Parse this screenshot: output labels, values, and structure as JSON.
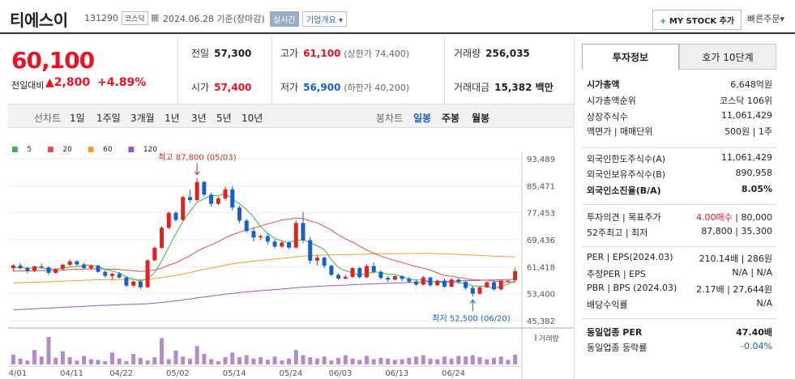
{
  "header": {
    "name": "티에스이",
    "code": "131290",
    "market": "코스닥",
    "date": "2024.06.28 기준(장마감)",
    "realtime": "실시간",
    "company_info": "기업개요",
    "mystock": "MY STOCK 추가",
    "quick_order": "빠른주문"
  },
  "price": {
    "current": "60,100",
    "change_label": "전일대비",
    "change": "2,800",
    "pct": "+4.89%"
  },
  "quote": {
    "prev_label": "전일",
    "prev": "57,300",
    "open_label": "시가",
    "open": "57,400",
    "high_label": "고가",
    "high": "61,100",
    "upper_limit": "(상한가 74,400)",
    "low_label": "저가",
    "low": "56,900",
    "lower_limit": "(하한가 40,200)",
    "volume_label": "거래량",
    "volume": "256,035",
    "amount_label": "거래대금",
    "amount": "15,382 백만"
  },
  "tabs": {
    "line": "선차트",
    "periods": [
      "1일",
      "1주일",
      "3개월",
      "1년",
      "3년",
      "5년",
      "10년"
    ],
    "candle": "봉차트",
    "daily": "일봉",
    "weekly": "주봉",
    "monthly": "월봉"
  },
  "legend": [
    "5",
    "20",
    "60",
    "120"
  ],
  "colors": {
    "up": "#e12222",
    "down": "#1a5fc8",
    "ma5": "#3ab54a",
    "ma20": "#e05050",
    "ma60": "#f0a030",
    "ma120": "#9b59b6"
  },
  "chart_data": {
    "type": "candlestick",
    "title": "",
    "y_ticks": [
      "93,489",
      "85,471",
      "77,453",
      "69,436",
      "61,418",
      "53,400",
      "45,382"
    ],
    "ylim": [
      45382,
      93489
    ],
    "x_ticks": [
      "04/01",
      "04/11",
      "04/22",
      "05/02",
      "05/14",
      "05/24",
      "06/03",
      "06/13",
      "06/24"
    ],
    "high_annotation": "최고 87,800 (05/03)",
    "low_annotation": "최저 52,500 (06/20)",
    "volume_label": "거래량",
    "candles": [
      [
        61000,
        62200,
        60000,
        61800
      ],
      [
        61800,
        62500,
        60500,
        61000
      ],
      [
        61000,
        61500,
        59500,
        60200
      ],
      [
        60200,
        61800,
        59800,
        61500
      ],
      [
        61500,
        62400,
        60800,
        61200
      ],
      [
        61200,
        61600,
        59000,
        59600
      ],
      [
        59600,
        61000,
        59300,
        60700
      ],
      [
        60700,
        62300,
        60400,
        62000
      ],
      [
        62000,
        63600,
        61500,
        63000
      ],
      [
        63000,
        63400,
        61600,
        62100
      ],
      [
        62100,
        62600,
        60600,
        61000
      ],
      [
        61000,
        62000,
        60300,
        61700
      ],
      [
        61700,
        62100,
        59600,
        59900
      ],
      [
        59900,
        60500,
        58200,
        58700
      ],
      [
        58700,
        59600,
        57600,
        59300
      ],
      [
        59300,
        59800,
        57900,
        58200
      ],
      [
        58200,
        58600,
        55400,
        55800
      ],
      [
        55800,
        57300,
        55400,
        57000
      ],
      [
        57000,
        57600,
        54800,
        55300
      ],
      [
        55300,
        63600,
        55100,
        63300
      ],
      [
        63300,
        67500,
        63000,
        67000
      ],
      [
        67000,
        73500,
        66800,
        73000
      ],
      [
        73000,
        77800,
        72500,
        77400
      ],
      [
        77400,
        78000,
        74800,
        75300
      ],
      [
        75300,
        82600,
        75000,
        82100
      ],
      [
        82100,
        84300,
        80400,
        81200
      ],
      [
        81200,
        87800,
        80800,
        86600
      ],
      [
        86600,
        86900,
        82300,
        82800
      ],
      [
        82800,
        83400,
        79300,
        80100
      ],
      [
        80100,
        82300,
        79800,
        81700
      ],
      [
        81700,
        85200,
        81100,
        84400
      ],
      [
        84400,
        85400,
        78200,
        79000
      ],
      [
        79000,
        79500,
        74300,
        75100
      ],
      [
        75100,
        75600,
        71500,
        72000
      ],
      [
        72000,
        73200,
        68900,
        70100
      ],
      [
        70100,
        71000,
        69300,
        70500
      ],
      [
        70500,
        71300,
        68000,
        68900
      ],
      [
        68900,
        69500,
        66800,
        67400
      ],
      [
        67400,
        69100,
        66900,
        68600
      ],
      [
        68600,
        69000,
        66600,
        67100
      ],
      [
        67100,
        75300,
        66700,
        74400
      ],
      [
        74400,
        77700,
        68500,
        69300
      ],
      [
        69300,
        70200,
        62300,
        63200
      ],
      [
        63200,
        64800,
        61800,
        64100
      ],
      [
        64100,
        64500,
        60900,
        61700
      ],
      [
        61700,
        62000,
        58600,
        59000
      ],
      [
        59000,
        59500,
        57500,
        57900
      ],
      [
        57900,
        59000,
        57600,
        58400
      ],
      [
        58400,
        61300,
        58100,
        61000
      ],
      [
        61000,
        61400,
        57900,
        58300
      ],
      [
        58300,
        62100,
        58000,
        61600
      ],
      [
        61600,
        62700,
        59400,
        59900
      ],
      [
        59900,
        60400,
        57600,
        58100
      ],
      [
        58100,
        58600,
        56900,
        57600
      ],
      [
        57600,
        58900,
        57300,
        58600
      ],
      [
        58600,
        59000,
        57100,
        57800
      ],
      [
        57800,
        58400,
        56500,
        57000
      ],
      [
        57000,
        57700,
        55700,
        56100
      ],
      [
        56100,
        58700,
        55800,
        58200
      ],
      [
        58200,
        58500,
        55400,
        55900
      ],
      [
        55900,
        57600,
        55600,
        57300
      ],
      [
        57300,
        57900,
        55100,
        55500
      ],
      [
        55500,
        58100,
        55200,
        57600
      ],
      [
        57600,
        58000,
        56400,
        56900
      ],
      [
        56900,
        57300,
        54600,
        55100
      ],
      [
        55100,
        55700,
        52500,
        53400
      ],
      [
        53400,
        55700,
        53100,
        55300
      ],
      [
        55300,
        57100,
        55100,
        56800
      ],
      [
        56800,
        57300,
        54300,
        54700
      ],
      [
        54700,
        57400,
        54400,
        57300
      ],
      [
        57300,
        57400,
        56900,
        57300
      ],
      [
        57400,
        61100,
        56900,
        60100
      ]
    ],
    "volumes": [
      15,
      9,
      6,
      22,
      12,
      42,
      10,
      20,
      11,
      6,
      13,
      8,
      7,
      5,
      18,
      9,
      5,
      16,
      10,
      6,
      11,
      40,
      8,
      21,
      12,
      9,
      28,
      16,
      8,
      5,
      11,
      18,
      11,
      14,
      9,
      11,
      7,
      12,
      6,
      9,
      22,
      14,
      11,
      9,
      12,
      6,
      10,
      14,
      9,
      7,
      13,
      8,
      10,
      9,
      7,
      8,
      10,
      12,
      14,
      9,
      8,
      12,
      9,
      13,
      12,
      14,
      11,
      8,
      10,
      12,
      7,
      15
    ]
  },
  "side": {
    "tab_active": "투자정보",
    "tab_other": "호가 10단계",
    "rows": [
      {
        "k": "시가총액",
        "v": "6,648억원"
      },
      {
        "k": "시가총액순위",
        "v": "코스닥 106위"
      },
      {
        "k": "상장주식수",
        "v": "11,061,429"
      },
      {
        "k": "액면가 | 매매단위",
        "v": "500원 | 1주"
      },
      {
        "k": "외국인한도주식수(A)",
        "v": "11,061,429"
      },
      {
        "k": "외국인보유주식수(B)",
        "v": "890,958"
      },
      {
        "k": "외국인소진율(B/A)",
        "v": "8.05%"
      },
      {
        "k": "투자의견 | 목표주가",
        "v1": "4.00매수",
        "v2": "| 80,000"
      },
      {
        "k": "52주최고 | 최저",
        "v": "87,800 | 35,300"
      },
      {
        "k": "PER | EPS(2024.03)",
        "v": "210.14배 | 286원"
      },
      {
        "k": "추정PER | EPS",
        "v": "N/A | N/A"
      },
      {
        "k": "PBR | BPS (2024.03)",
        "v": "2.17배 | 27,644원"
      },
      {
        "k": "배당수익률",
        "v": "N/A"
      },
      {
        "k": "동일업종 PER",
        "v": "47.40배"
      },
      {
        "k": "동일업종 등락률",
        "v": "-0.04%"
      }
    ]
  }
}
